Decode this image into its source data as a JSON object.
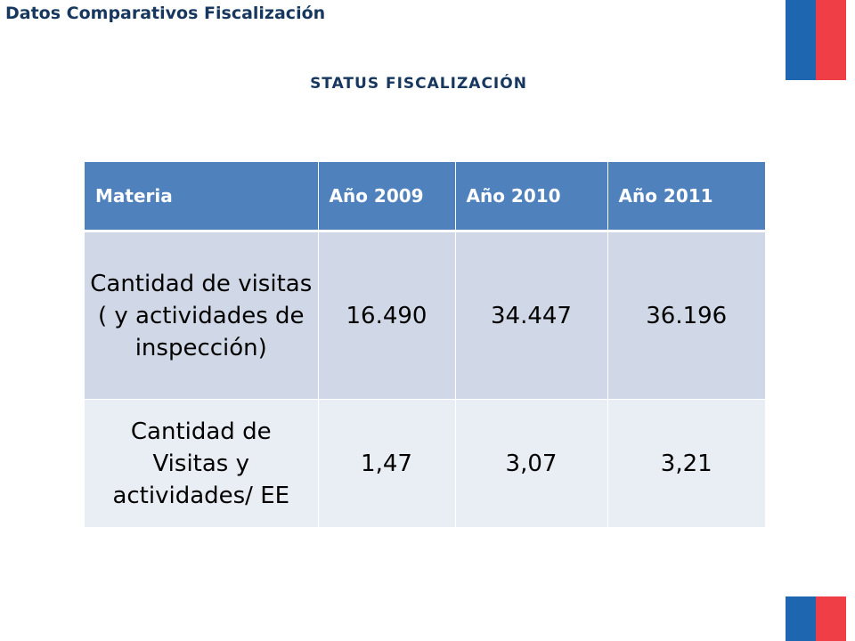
{
  "header": {
    "title": "Datos Comparativos Fiscalización"
  },
  "subtitle": "STATUS FISCALIZACIÓN",
  "colors": {
    "header_fill": "#4f81bd",
    "row1_fill": "#d0d8e8",
    "row2_fill": "#e9edf4",
    "title_text": "#17375e",
    "flag_blue": "#1f66b0",
    "flag_red": "#ef3e46"
  },
  "table": {
    "columns": [
      "Materia",
      "Año 2009",
      "Año 2010",
      "Año 2011"
    ],
    "rows": [
      {
        "materia": "Cantidad de visitas ( y actividades de inspección)",
        "values": [
          "16.490",
          "34.447",
          "36.196"
        ]
      },
      {
        "materia": "Cantidad de Visitas y actividades/ EE",
        "values": [
          "1,47",
          "3,07",
          "3,21"
        ]
      }
    ]
  },
  "decorations": {
    "top_flag": "chile-flag-stripes",
    "bottom_flag": "chile-flag-stripes"
  }
}
